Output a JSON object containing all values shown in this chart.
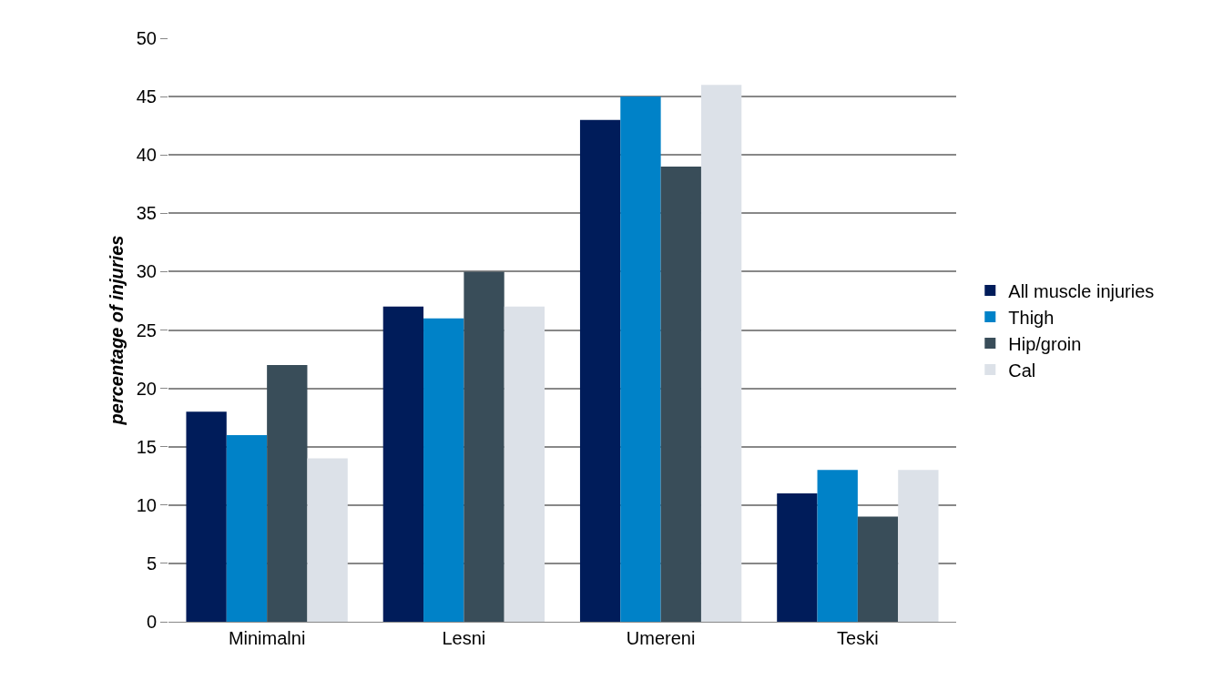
{
  "chart_data": {
    "type": "bar",
    "ylabel": "percentage of injuries",
    "categories": [
      "Minimalni",
      "Lesni",
      "Umereni",
      "Teski"
    ],
    "series": [
      {
        "name": "All muscle injuries",
        "color": "#001c5a",
        "values": [
          18,
          27,
          43,
          11
        ]
      },
      {
        "name": "Thigh",
        "color": "#0082c8",
        "values": [
          16,
          26,
          45,
          13
        ]
      },
      {
        "name": "Hip/groin",
        "color": "#394d59",
        "values": [
          22,
          30,
          39,
          9
        ]
      },
      {
        "name": "Cal",
        "color": "#dce1e8",
        "values": [
          14,
          27,
          46,
          13
        ]
      }
    ],
    "ylim": [
      0,
      50
    ],
    "yticks": [
      0,
      5,
      10,
      15,
      20,
      25,
      30,
      35,
      40,
      45,
      50
    ],
    "grid": "y",
    "legend": "right"
  }
}
